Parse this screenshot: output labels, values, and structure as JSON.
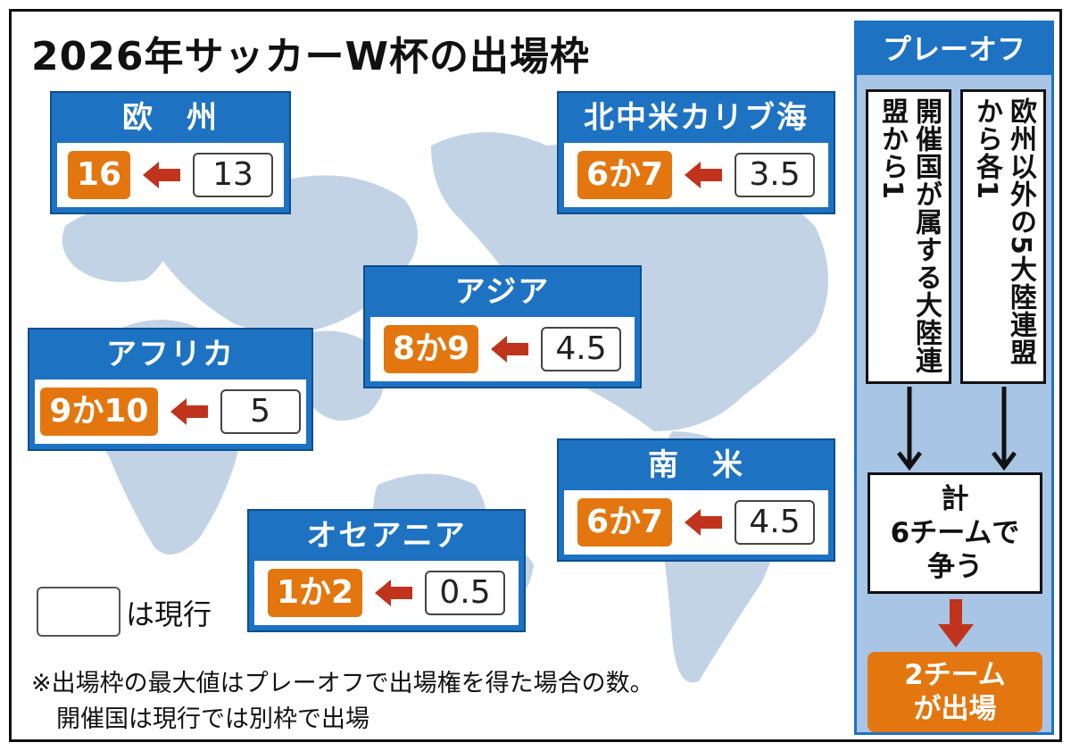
{
  "title": "2026年サッカーW杯の出場枠",
  "colors": {
    "region_header": "#1e72c2",
    "new_slots": "#e3760f",
    "arrow": "#c0341d",
    "map": "#c3d3e6",
    "playoff_background": "#a9c5e6"
  },
  "regions": [
    {
      "name": "欧　州",
      "new_slots": "16",
      "current_slots": "13"
    },
    {
      "name": "北中米カリブ海",
      "new_slots": "6か7",
      "current_slots": "3.5"
    },
    {
      "name": "アジア",
      "new_slots": "8か9",
      "current_slots": "4.5"
    },
    {
      "name": "アフリカ",
      "new_slots": "9か10",
      "current_slots": "5"
    },
    {
      "name": "南　米",
      "new_slots": "6か7",
      "current_slots": "4.5"
    },
    {
      "name": "オセアニア",
      "new_slots": "1か2",
      "current_slots": "0.5"
    }
  ],
  "legend": {
    "label": "は現行"
  },
  "notes": [
    "※出場枠の最大値はプレーオフで出場権を得た場合の数。",
    "開催国は現行では別枠で出場"
  ],
  "playoff": {
    "title": "プレーオフ",
    "host_continent": "開催国が属する大陸連盟から1",
    "other_continents": "欧州以外の5大陸連盟から各1",
    "total": [
      "計",
      "6チームで",
      "争う"
    ],
    "result": [
      "2チーム",
      "が出場"
    ]
  }
}
